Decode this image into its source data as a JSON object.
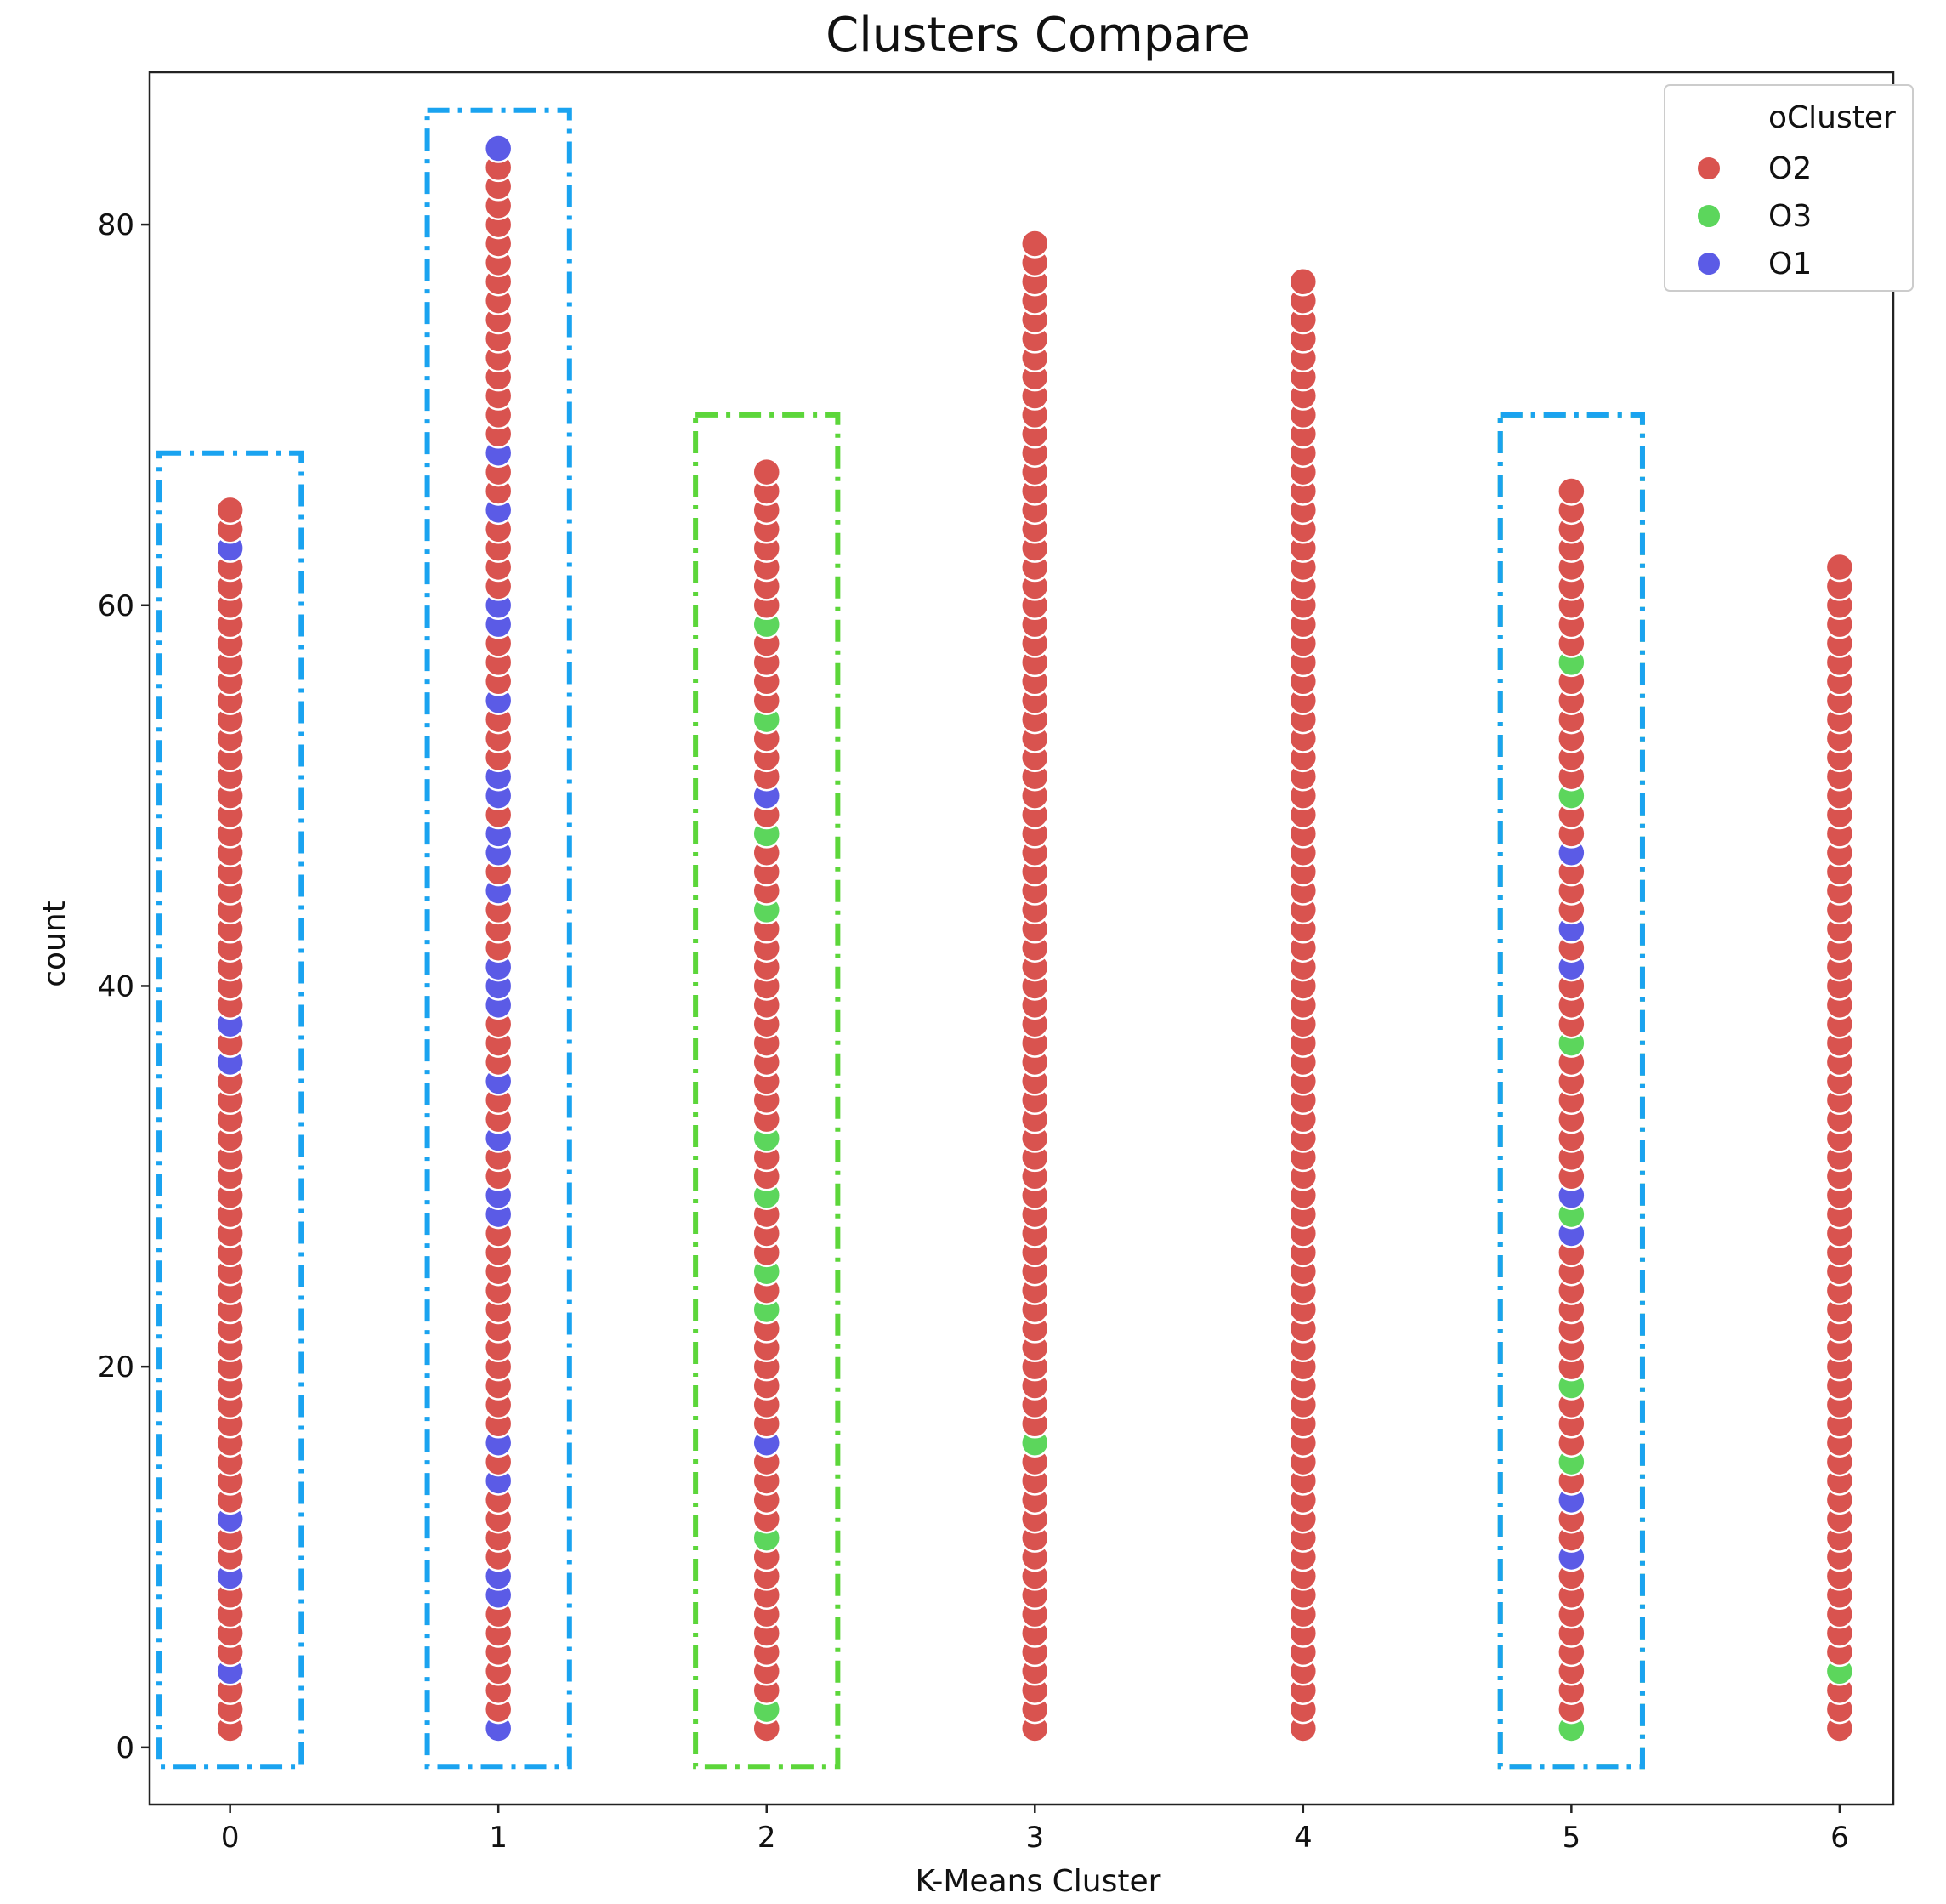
{
  "chart_data": {
    "type": "scatter",
    "title": "Clusters Compare",
    "xlabel": "K-Means Cluster",
    "ylabel": "count",
    "x_ticks": [
      "0",
      "1",
      "2",
      "3",
      "4",
      "5",
      "6"
    ],
    "y_ticks": [
      "0",
      "20",
      "40",
      "60",
      "80"
    ],
    "xlim": [
      -0.3,
      6.2
    ],
    "ylim": [
      -3,
      88
    ],
    "grid": false,
    "legend": {
      "title": "oCluster",
      "position": "top-right",
      "entries": [
        {
          "name": "O2",
          "color": "#d9534f"
        },
        {
          "name": "O3",
          "color": "#5cd65c"
        },
        {
          "name": "O1",
          "color": "#5b5be6"
        }
      ]
    },
    "default_series": "O2",
    "columns": [
      {
        "x": 0,
        "max_count": 65,
        "O1": [
          4,
          9,
          12,
          36,
          38,
          63
        ],
        "O3": []
      },
      {
        "x": 1,
        "max_count": 84,
        "O1": [
          1,
          8,
          9,
          14,
          16,
          28,
          29,
          32,
          35,
          39,
          40,
          41,
          45,
          47,
          48,
          50,
          51,
          55,
          59,
          60,
          65,
          68,
          84
        ],
        "O3": []
      },
      {
        "x": 2,
        "max_count": 67,
        "O1": [
          16,
          50
        ],
        "O3": [
          2,
          11,
          23,
          25,
          29,
          32,
          44,
          48,
          54,
          59
        ]
      },
      {
        "x": 3,
        "max_count": 79,
        "O1": [],
        "O3": [
          16
        ]
      },
      {
        "x": 4,
        "max_count": 77,
        "O1": [],
        "O3": []
      },
      {
        "x": 5,
        "max_count": 66,
        "O1": [
          10,
          13,
          27,
          29,
          41,
          43,
          47
        ],
        "O3": [
          1,
          15,
          19,
          28,
          37,
          50,
          57
        ]
      },
      {
        "x": 6,
        "max_count": 62,
        "O1": [],
        "O3": [
          4
        ]
      }
    ],
    "highlight_boxes": [
      {
        "x": 0,
        "top": 68,
        "color": "#1aa3f0"
      },
      {
        "x": 1,
        "top": 86,
        "color": "#1aa3f0"
      },
      {
        "x": 2,
        "top": 70,
        "color": "#5cd63a"
      },
      {
        "x": 5,
        "top": 70,
        "color": "#5cd63a"
      },
      {
        "x": 5,
        "top": 70,
        "color": "#1aa3f0"
      }
    ]
  }
}
